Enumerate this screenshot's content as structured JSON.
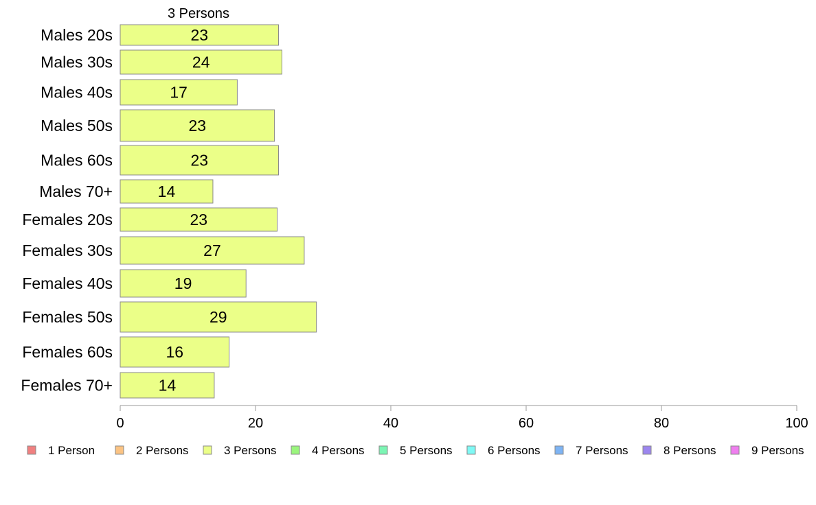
{
  "chart_data": {
    "type": "bar",
    "orientation": "horizontal",
    "series_label": "3 Persons",
    "categories": [
      "Males 20s",
      "Males 30s",
      "Males 40s",
      "Males 50s",
      "Males 60s",
      "Males 70+",
      "Females 20s",
      "Females 30s",
      "Females 40s",
      "Females 50s",
      "Females 60s",
      "Females 70+"
    ],
    "values": [
      23.4,
      23.9,
      17.3,
      22.8,
      23.4,
      13.7,
      23.2,
      27.2,
      18.6,
      29.0,
      16.1,
      13.9
    ],
    "value_labels": [
      "23",
      "24",
      "17",
      "23",
      "23",
      "14",
      "23",
      "27",
      "19",
      "29",
      "16",
      "14"
    ],
    "xlim": [
      0,
      100
    ],
    "xticks": [
      "0",
      "20",
      "40",
      "60",
      "80",
      "100"
    ],
    "grid": false,
    "bar_color": "#ebff88",
    "legend_position": "bottom",
    "legend": [
      {
        "label": "1 Person",
        "color": "#f08080"
      },
      {
        "label": "2 Persons",
        "color": "#fbc383"
      },
      {
        "label": "3 Persons",
        "color": "#ebff88"
      },
      {
        "label": "4 Persons",
        "color": "#9af57d"
      },
      {
        "label": "5 Persons",
        "color": "#7cf5b4"
      },
      {
        "label": "6 Persons",
        "color": "#7ff9f5"
      },
      {
        "label": "7 Persons",
        "color": "#7eb4f4"
      },
      {
        "label": "8 Persons",
        "color": "#9c86ef"
      },
      {
        "label": "9 Persons",
        "color": "#ef7eef"
      }
    ]
  }
}
